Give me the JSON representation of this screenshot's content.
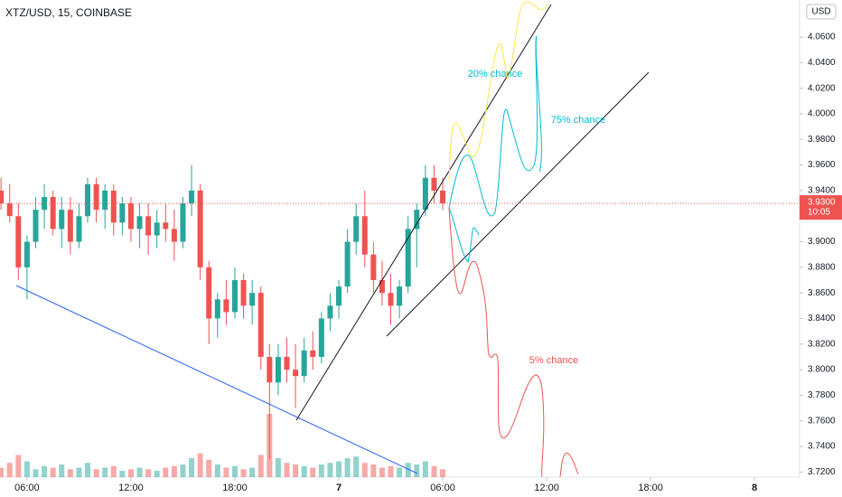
{
  "chart_data": {
    "type": "candlestick",
    "title": "XTZ/USD, 15, COINBASE",
    "currency": "USD",
    "up_color": "#26a69a",
    "down_color": "#ef5350",
    "x": [
      4.5,
      5,
      5.5,
      6,
      6.5,
      7,
      7.5,
      8,
      8.5,
      9,
      9.5,
      10,
      10.5,
      11,
      11.5,
      12,
      12.5,
      13,
      13.5,
      14,
      14.5,
      15,
      15.5,
      16,
      16.5,
      17,
      17.5,
      18,
      18.5,
      19,
      19.5,
      20,
      20.5,
      21,
      21.5,
      22,
      22.5,
      23,
      23.5,
      24,
      24.5,
      25,
      25.5,
      26,
      26.5,
      27,
      27.5,
      28,
      28.5,
      29,
      29.5,
      30
    ],
    "open": [
      3.94,
      3.93,
      3.92,
      3.88,
      3.9,
      3.925,
      3.935,
      3.91,
      3.925,
      3.9,
      3.92,
      3.945,
      3.925,
      3.94,
      3.915,
      3.93,
      3.91,
      3.92,
      3.905,
      3.915,
      3.91,
      3.9,
      3.93,
      3.94,
      3.88,
      3.84,
      3.855,
      3.845,
      3.87,
      3.85,
      3.86,
      3.81,
      3.79,
      3.81,
      3.8,
      3.795,
      3.815,
      3.81,
      3.84,
      3.85,
      3.865,
      3.9,
      3.92,
      3.89,
      3.87,
      3.86,
      3.85,
      3.865,
      3.91,
      3.925,
      3.95,
      3.94
    ],
    "high": [
      3.95,
      3.945,
      3.93,
      3.905,
      3.935,
      3.945,
      3.94,
      3.935,
      3.935,
      3.93,
      3.95,
      3.95,
      3.945,
      3.945,
      3.935,
      3.935,
      3.93,
      3.93,
      3.925,
      3.93,
      3.925,
      3.935,
      3.96,
      3.945,
      3.885,
      3.86,
      3.87,
      3.88,
      3.875,
      3.87,
      3.865,
      3.82,
      3.82,
      3.825,
      3.82,
      3.825,
      3.83,
      3.845,
      3.86,
      3.87,
      3.91,
      3.93,
      3.94,
      3.9,
      3.885,
      3.875,
      3.87,
      3.92,
      3.93,
      3.96,
      3.96,
      3.95
    ],
    "low": [
      3.925,
      3.915,
      3.87,
      3.855,
      3.895,
      3.91,
      3.905,
      3.895,
      3.89,
      3.895,
      3.915,
      3.915,
      3.91,
      3.905,
      3.905,
      3.9,
      3.895,
      3.89,
      3.895,
      3.9,
      3.885,
      3.895,
      3.92,
      3.87,
      3.82,
      3.825,
      3.835,
      3.84,
      3.84,
      3.835,
      3.8,
      3.73,
      3.78,
      3.79,
      3.77,
      3.79,
      3.8,
      3.805,
      3.83,
      3.84,
      3.86,
      3.89,
      3.88,
      3.86,
      3.85,
      3.835,
      3.84,
      3.86,
      3.88,
      3.92,
      3.93,
      3.925
    ],
    "close": [
      3.93,
      3.92,
      3.88,
      3.9,
      3.925,
      3.935,
      3.91,
      3.925,
      3.9,
      3.92,
      3.945,
      3.925,
      3.94,
      3.915,
      3.93,
      3.91,
      3.92,
      3.905,
      3.915,
      3.91,
      3.9,
      3.93,
      3.94,
      3.88,
      3.84,
      3.855,
      3.845,
      3.87,
      3.85,
      3.86,
      3.81,
      3.79,
      3.81,
      3.8,
      3.795,
      3.815,
      3.81,
      3.84,
      3.85,
      3.865,
      3.9,
      3.92,
      3.89,
      3.87,
      3.86,
      3.85,
      3.865,
      3.91,
      3.925,
      3.95,
      3.94,
      3.93
    ],
    "volume": [
      6,
      9,
      14,
      10,
      5,
      7,
      6,
      8,
      5,
      6,
      9,
      5,
      6,
      7,
      4,
      5,
      6,
      5,
      4,
      6,
      7,
      8,
      12,
      15,
      11,
      8,
      6,
      7,
      5,
      6,
      14,
      40,
      12,
      9,
      8,
      7,
      6,
      8,
      9,
      10,
      12,
      13,
      9,
      8,
      6,
      7,
      6,
      9,
      8,
      10,
      7,
      5
    ],
    "xlim": [
      4.44,
      50.6
    ],
    "ylim": [
      3.716,
      4.089
    ],
    "xticks": [
      {
        "value": 6,
        "label": "06:00"
      },
      {
        "value": 12,
        "label": "12:00"
      },
      {
        "value": 18,
        "label": "18:00"
      },
      {
        "value": 24,
        "label": "7"
      },
      {
        "value": 30,
        "label": "06:00"
      },
      {
        "value": 36,
        "label": "12:00"
      },
      {
        "value": 42,
        "label": "18:00"
      },
      {
        "value": 48,
        "label": "8"
      }
    ],
    "yticks": [
      {
        "value": 3.72,
        "label": "3.7200"
      },
      {
        "value": 3.74,
        "label": "3.7400"
      },
      {
        "value": 3.76,
        "label": "3.7600"
      },
      {
        "value": 3.78,
        "label": "3.7800"
      },
      {
        "value": 3.8,
        "label": "3.8000"
      },
      {
        "value": 3.82,
        "label": "3.8200"
      },
      {
        "value": 3.84,
        "label": "3.8400"
      },
      {
        "value": 3.86,
        "label": "3.8600"
      },
      {
        "value": 3.88,
        "label": "3.8800"
      },
      {
        "value": 3.9,
        "label": "3.9000"
      },
      {
        "value": 3.92,
        "label": "3.9200"
      },
      {
        "value": 3.94,
        "label": "3.9400"
      },
      {
        "value": 3.96,
        "label": "3.9600"
      },
      {
        "value": 3.98,
        "label": "3.9800"
      },
      {
        "value": 4.0,
        "label": "4.0000"
      },
      {
        "value": 4.02,
        "label": "4.0200"
      },
      {
        "value": 4.04,
        "label": "4.0400"
      },
      {
        "value": 4.06,
        "label": "4.0600"
      }
    ],
    "last_price": {
      "value": 3.93,
      "label": "3.9300"
    },
    "countdown": "10:05",
    "annotations": [
      "20% chance",
      "75% chance",
      "5% chance"
    ]
  }
}
